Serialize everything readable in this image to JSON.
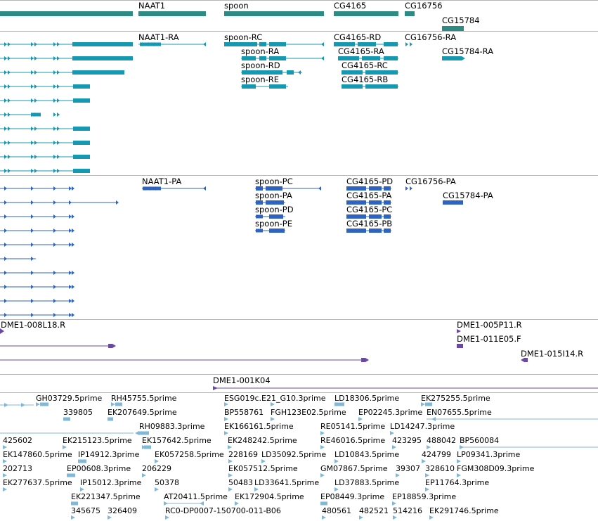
{
  "colors": {
    "gene": "#2e8b84",
    "transcript_ra": "#1599b3",
    "transcript_pa": "#2f63c3",
    "clone": "#6a49a6",
    "est": "#80b8d8",
    "separator": "#b4b4b4"
  },
  "tracks": {
    "genes": {
      "labels": [
        "NAAT1",
        "spoon",
        "CG4165",
        "CG16756",
        "CG15784"
      ]
    },
    "transcripts_ra": {
      "labels": [
        "NAAT1-RA",
        "spoon-RC",
        "CG4165-RD",
        "CG16756-RA",
        "spoon-RA",
        "CG4165-RA",
        "CG15784-RA",
        "spoon-RD",
        "CG4165-RC",
        "spoon-RE",
        "CG4165-RB"
      ]
    },
    "transcripts_pa": {
      "labels": [
        "NAAT1-PA",
        "spoon-PC",
        "CG4165-PD",
        "CG16756-PA",
        "spoon-PA",
        "CG4165-PA",
        "CG15784-PA",
        "spoon-PD",
        "CG4165-PC",
        "spoon-PE",
        "CG4165-PB"
      ]
    },
    "clones": {
      "labels": [
        "DME1-008L18.R",
        "DME1-005P11.R",
        "DME1-011E05.F",
        "DME1-015I14.R",
        "DME1-001K04"
      ]
    },
    "ests": {
      "labels": [
        "GH03729.5prime",
        "RH45755.5prime",
        "ESG019c.E21_G10.3prime",
        "LD18306.5prime",
        "EK275255.5prime",
        "339805",
        "EK207649.5prime",
        "BP558761",
        "FGH123E02.5prime",
        "EP02245.3prime",
        "EN07655.5prime",
        "RH09883.3prime",
        "EK166161.5prime",
        "RE05141.5prime",
        "LD14247.3prime",
        "425602",
        "EK215123.5prime",
        "EK157642.5prime",
        "EK248242.5prime",
        "RE46016.5prime",
        "423295",
        "488042",
        "BP560084",
        "EK147860.5prime",
        "IP14912.3prime",
        "EK057258.5prime",
        "228169",
        "LD35092.5prime",
        "LD10843.5prime",
        "424799",
        "LP09341.3prime",
        "202713",
        "EP00608.3prime",
        "206229",
        "EK057512.5prime",
        "GM07867.5prime",
        "39307",
        "328610",
        "FGM308D09.3prime",
        "EK277637.5prime",
        "IP15012.3prime",
        "50378",
        "50483",
        "LD33641.5prime",
        "LD37883.5prime",
        "EP11764.3prime",
        "EK221347.5prime",
        "AT20411.5prime",
        "EK172904.5prime",
        "EP08449.3prime",
        "EP18859.3prime",
        "345675",
        "326409",
        "RC0-DP0007-150700-011-B06",
        "480561",
        "482521",
        "514216",
        "EK291746.5prime"
      ]
    }
  }
}
